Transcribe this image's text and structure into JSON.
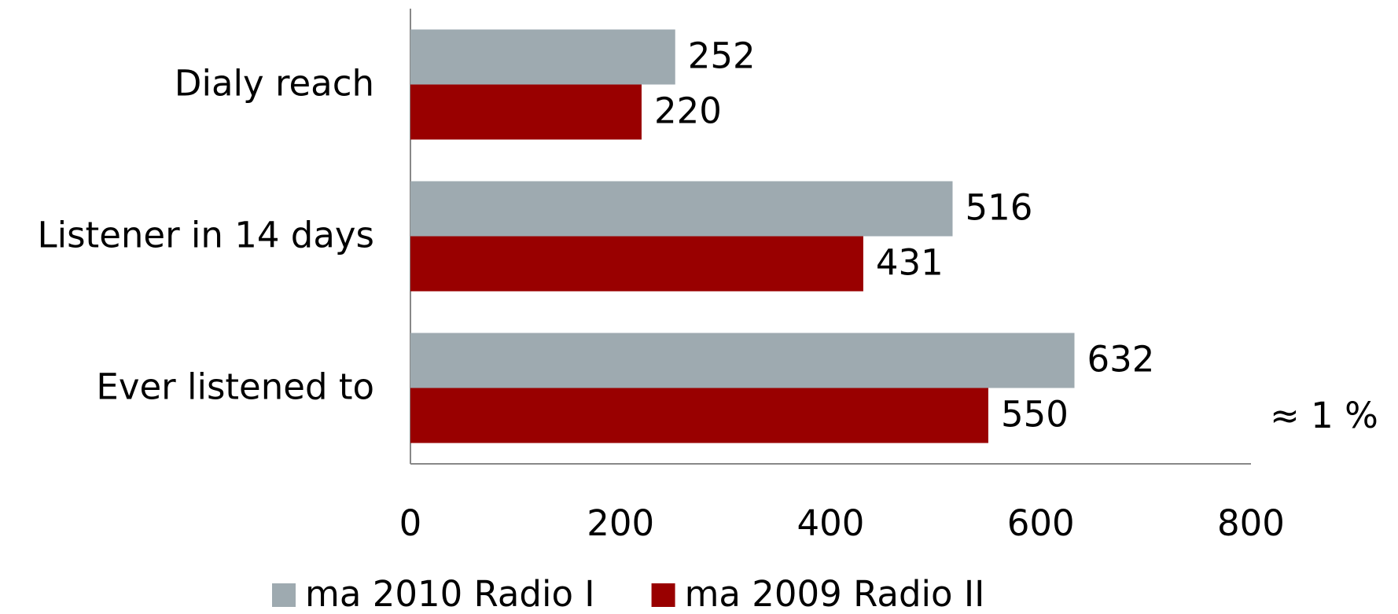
{
  "chart_data": {
    "type": "bar",
    "orientation": "horizontal",
    "categories": [
      "Dialy reach",
      "Listener in 14 days",
      "Ever listened to"
    ],
    "series": [
      {
        "name": "ma 2010 Radio I",
        "color": "#9eaab0",
        "values": [
          252,
          516,
          632
        ]
      },
      {
        "name": "ma 2009 Radio II",
        "color": "#990000",
        "values": [
          220,
          431,
          550
        ]
      }
    ],
    "xlim": [
      0,
      800
    ],
    "xticks": [
      0,
      200,
      400,
      600,
      800
    ],
    "grid": false,
    "legend": "bottom",
    "annotation": "≈ 1 %"
  }
}
